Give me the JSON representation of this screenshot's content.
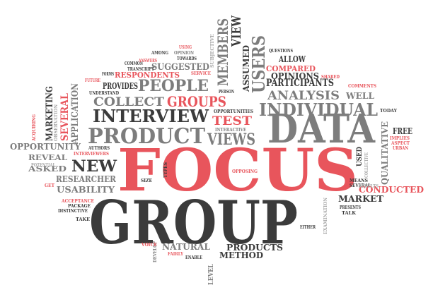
{
  "colors": {
    "dark": "#3b3b3b",
    "gray": "#7d7d7d",
    "light_gray": "#a8a8a8",
    "accent_red": "#e8555c",
    "background": "#ffffff"
  },
  "words": {
    "focus": "FOCUS",
    "group": "GROUP",
    "data": "DATA",
    "individual": "INDIVIDUAL",
    "interview": "INTERVIEW",
    "product": "PRODUCT",
    "people": "PEOPLE",
    "groups": "GROUPS",
    "collect": "COLLECT",
    "views": "VIEWS",
    "test": "TEST",
    "new": "NEW",
    "researcher": "RESEARCHER",
    "usability": "USABILITY",
    "asked": "ASKED",
    "reveal": "REVEAL",
    "opportunity": "OPPORTUNITY",
    "marketing": "MARKETING",
    "several": "SEVERAL",
    "application": "APPLICATION",
    "observation": "OBSERVATION",
    "acquiring": "ACQUIRING",
    "respondents": "RESPONDENTS",
    "suggested": "SUGGESTED",
    "provides": "PROVIDES",
    "forms": "FORMS",
    "future": "FUTURE",
    "understand": "UNDERSTAND",
    "common": "COMMON",
    "transcript": "TRANSCRIPT",
    "answers": "ANSWERS",
    "among": "AMONG",
    "using": "USING",
    "opinion": "OPINION",
    "towards": "TOWARDS",
    "service": "SERVICE",
    "members": "MEMBERS",
    "subjective": "SUBJECTIVE",
    "view": "VIEW",
    "assumed": "ASSUMED",
    "users": "USERS",
    "person": "PERSON",
    "questions": "QUESTIONS",
    "allow": "ALLOW",
    "compared": "COMPARED",
    "participants": "PARTICIPANTS",
    "opinions": "OPINIONS",
    "shared": "SHARED",
    "analysis": "ANALYSIS",
    "comments": "COMMENTS",
    "well": "WELL",
    "today": "TODAY",
    "opportunities": "OPPORTUNITIES",
    "interactive": "INTERACTIVE",
    "free": "FREE",
    "implies": "IMPLIES",
    "aspect": "ASPECT",
    "urban": "URBAN",
    "qualitative": "QUALITATIVE",
    "used": "USED",
    "collective": "COLLECTIVE",
    "means": "MEANS",
    "several_small": "SEVERAL",
    "conducted": "CONDUCTED",
    "market": "MARKET",
    "presents": "PRESENTS",
    "talk": "TALK",
    "results": "RESULTS",
    "authors": "AUTHORS",
    "interviewers": "INTERVIEWERS",
    "potential": "POTENTIAL",
    "get": "GET",
    "acceptance": "ACCEPTANCE",
    "package": "PACKAGE",
    "distinctive": "DISTINCTIVE",
    "take": "TAKE",
    "types": "TYPES",
    "opposing": "OPPOSING",
    "size": "SIZE",
    "develop": "DEVELOP",
    "voice": "VOICE",
    "natural": "NATURAL",
    "fairly": "FAIRLY",
    "enable": "ENABLE",
    "level": "LEVEL",
    "products": "PRODUCTS",
    "method": "METHOD",
    "either": "EITHER",
    "examination": "EXAMINATION"
  }
}
